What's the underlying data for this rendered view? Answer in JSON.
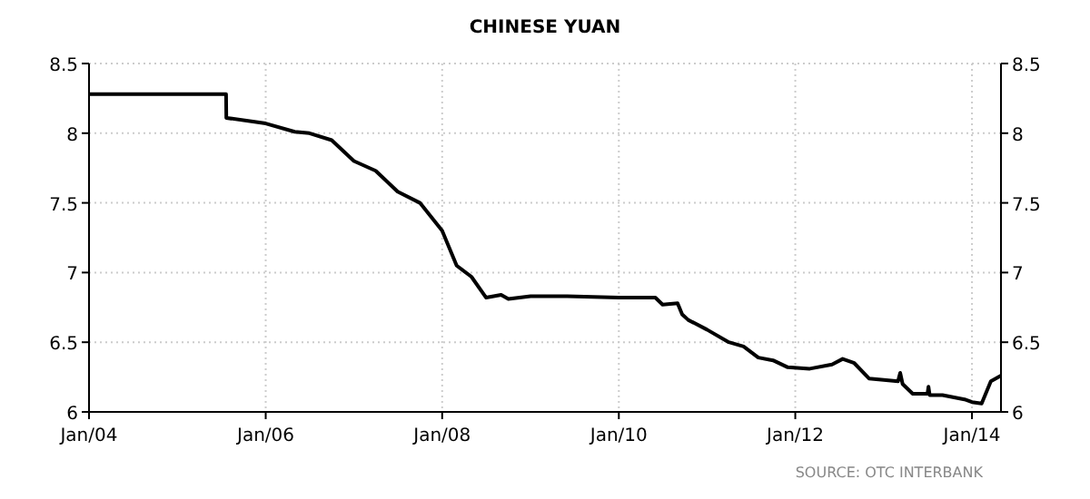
{
  "chart_data": {
    "type": "line",
    "title": "CHINESE YUAN",
    "annotations": [
      "SOURCE: OTC INTERBANK"
    ],
    "xlim": [
      "2004-01-01",
      "2014-05-01"
    ],
    "xticks": [
      {
        "value": "2004-01-01",
        "label": "Jan/04"
      },
      {
        "value": "2006-01-01",
        "label": "Jan/06"
      },
      {
        "value": "2008-01-01",
        "label": "Jan/08"
      },
      {
        "value": "2010-01-01",
        "label": "Jan/10"
      },
      {
        "value": "2012-01-01",
        "label": "Jan/12"
      },
      {
        "value": "2014-01-01",
        "label": "Jan/14"
      }
    ],
    "ylim": [
      6,
      8.5
    ],
    "yticks": [
      6,
      6.5,
      7,
      7.5,
      8,
      8.5
    ],
    "y2lim": [
      6,
      8.5
    ],
    "y2ticks": [
      6,
      6.5,
      7,
      7.5,
      8,
      8.5
    ],
    "grid": true,
    "line_style": "solid",
    "series": [
      {
        "color": "#000000",
        "x": [
          "2004-01-01",
          "2005-07-21",
          "2005-07-22",
          "2006-01-01",
          "2006-05-01",
          "2006-07-01",
          "2006-10-01",
          "2007-01-01",
          "2007-04-01",
          "2007-07-01",
          "2007-10-01",
          "2008-01-01",
          "2008-03-01",
          "2008-05-01",
          "2008-07-01",
          "2008-09-01",
          "2008-10-01",
          "2009-01-01",
          "2009-06-01",
          "2010-01-01",
          "2010-06-01",
          "2010-07-01",
          "2010-09-01",
          "2010-09-20",
          "2010-10-15",
          "2011-01-01",
          "2011-04-01",
          "2011-06-01",
          "2011-08-01",
          "2011-10-01",
          "2011-12-01",
          "2012-03-01",
          "2012-06-01",
          "2012-07-15",
          "2012-09-01",
          "2012-11-01",
          "2013-01-01",
          "2013-03-01",
          "2013-03-10",
          "2013-03-20",
          "2013-05-01",
          "2013-07-01",
          "2013-07-05",
          "2013-07-10",
          "2013-09-01",
          "2013-12-01",
          "2014-01-01",
          "2014-02-10",
          "2014-03-01",
          "2014-03-20",
          "2014-05-01"
        ],
        "values": [
          8.28,
          8.28,
          8.11,
          8.07,
          8.01,
          8.0,
          7.95,
          7.8,
          7.73,
          7.58,
          7.5,
          7.3,
          7.05,
          6.97,
          6.82,
          6.84,
          6.81,
          6.83,
          6.83,
          6.82,
          6.82,
          6.77,
          6.78,
          6.7,
          6.66,
          6.59,
          6.5,
          6.47,
          6.39,
          6.37,
          6.32,
          6.31,
          6.34,
          6.38,
          6.35,
          6.24,
          6.23,
          6.22,
          6.28,
          6.2,
          6.13,
          6.13,
          6.18,
          6.12,
          6.12,
          6.09,
          6.07,
          6.06,
          6.14,
          6.22,
          6.26
        ]
      }
    ]
  }
}
